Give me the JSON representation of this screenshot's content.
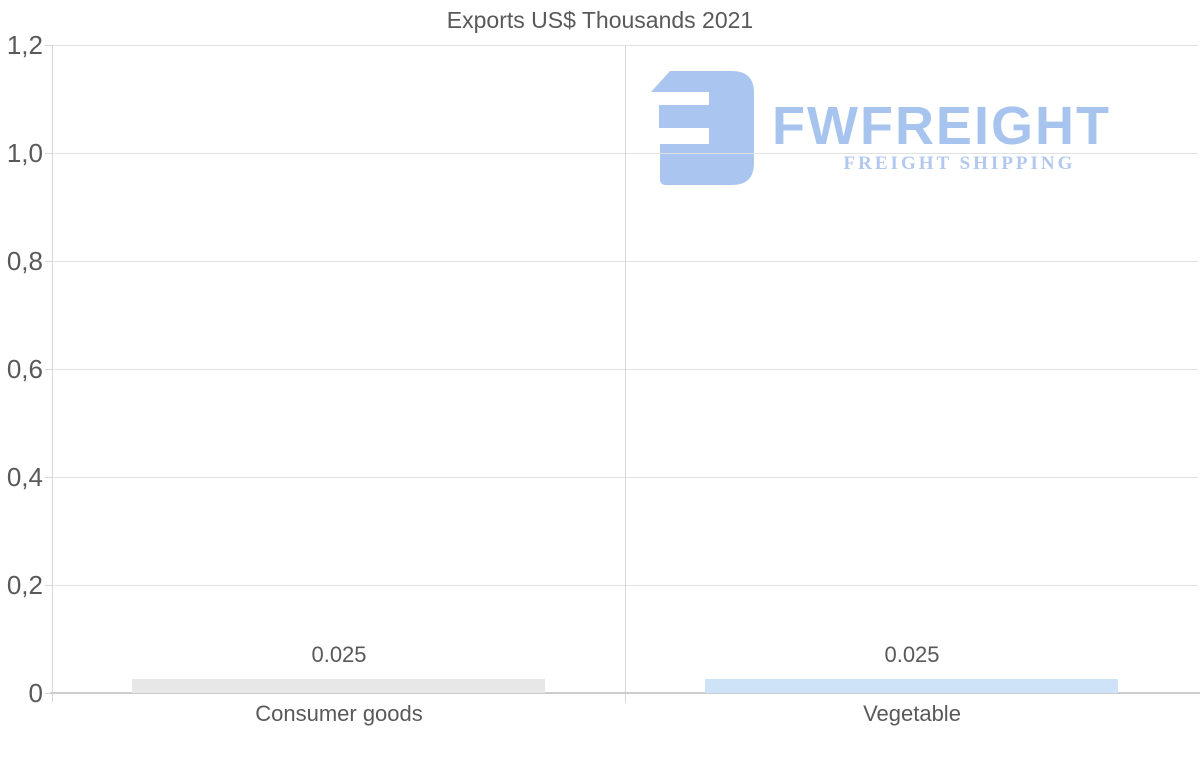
{
  "title": "Exports US$ Thousands 2021",
  "watermark": {
    "brand": "FWFREIGHT",
    "tagline": "FREIGHT SHIPPING",
    "icon": "fwfreight-logo-icon",
    "brand_color": "#a7c4ef",
    "tagline_color": "#b2c8ef",
    "icon_color": "#aac6f0"
  },
  "chart_data": {
    "type": "bar",
    "title": "Exports US$ Thousands 2021",
    "categories": [
      "Consumer goods",
      "Vegetable"
    ],
    "values": [
      0.025,
      0.025
    ],
    "value_labels": [
      "0.025",
      "0.025"
    ],
    "bar_colors": [
      "#e7e7e7",
      "#cfe3f8"
    ],
    "ylim": [
      0,
      1.2
    ],
    "ytick_values": [
      0,
      0.2,
      0.4,
      0.6,
      0.8,
      1.0,
      1.2
    ],
    "ytick_labels": [
      "0",
      "0,2",
      "0,4",
      "0,6",
      "0,8",
      "1,0",
      "1,2"
    ],
    "xlabel": "",
    "ylabel": "",
    "grid": true,
    "legend": false
  },
  "colors": {
    "text": "#595959",
    "gridline": "#e2e2e2",
    "axis_vertical": "#d7d7d7",
    "axis_bottom": "#cccccc"
  }
}
